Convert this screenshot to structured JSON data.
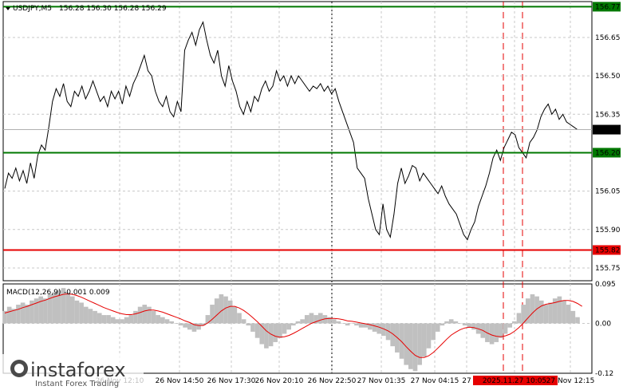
{
  "window": {
    "title": "USDJPY,M5",
    "ohlc": "156.28 156.30 156.28 156.29",
    "menu_icon": "triangle-down-icon"
  },
  "indicator": {
    "label": "MACD(12,26,9)",
    "values": "-0.001 0.009"
  },
  "brand": {
    "name": "instaforex",
    "tagline": "Instant Forex Trading"
  },
  "colors": {
    "price_line": "#000000",
    "green_level": "#007800",
    "red_level": "#e60000",
    "grid": "#c8c8c8",
    "macd_hist": "#c0c0c0",
    "macd_signal": "#e60000",
    "current_price_box": "#000000"
  },
  "chart_data": [
    {
      "type": "line",
      "symbol": "USDJPY",
      "timeframe": "M5",
      "ylim": [
        155.7,
        156.79
      ],
      "y_ticks": [
        "156.77",
        "156.65",
        "156.50",
        "156.35",
        "156.20",
        "156.05",
        "155.90",
        "155.82",
        "155.75"
      ],
      "x_ticks": [
        "26 Nov 12:10",
        "26 Nov 14:50",
        "26 Nov 17:30",
        "26 Nov 20:10",
        "26 Nov 22:50",
        "27 Nov 01:35",
        "27 Nov 04:15",
        "27",
        "2025.11.27 10:05",
        "27 Nov 12:15"
      ],
      "levels": [
        {
          "label": "156.77",
          "value": 156.77,
          "color": "green"
        },
        {
          "label": "156.20",
          "value": 156.2,
          "color": "green"
        },
        {
          "label": "155.82",
          "value": 155.82,
          "color": "red"
        }
      ],
      "current_price": {
        "label": "156.29",
        "value": 156.29
      },
      "series": [
        {
          "values": [
            156.06,
            156.12,
            156.1,
            156.14,
            156.09,
            156.13,
            156.08,
            156.16,
            156.1,
            156.19,
            156.23,
            156.21,
            156.3,
            156.4,
            156.45,
            156.42,
            156.47,
            156.4,
            156.38,
            156.44,
            156.42,
            156.46,
            156.41,
            156.44,
            156.48,
            156.44,
            156.4,
            156.42,
            156.38,
            156.44,
            156.41,
            156.44,
            156.39,
            156.46,
            156.42,
            156.47,
            156.5,
            156.54,
            156.58,
            156.52,
            156.5,
            156.44,
            156.4,
            156.38,
            156.42,
            156.36,
            156.34,
            156.4,
            156.36,
            156.6,
            156.64,
            156.67,
            156.62,
            156.68,
            156.71,
            156.64,
            156.58,
            156.55,
            156.6,
            156.5,
            156.46,
            156.54,
            156.48,
            156.44,
            156.38,
            156.35,
            156.4,
            156.36,
            156.42,
            156.4,
            156.45,
            156.48,
            156.44,
            156.46,
            156.52,
            156.48,
            156.5,
            156.46,
            156.5,
            156.47,
            156.5,
            156.48,
            156.46,
            156.44,
            156.46,
            156.45,
            156.47,
            156.44,
            156.46,
            156.43,
            156.45,
            156.4,
            156.36,
            156.32,
            156.28,
            156.24,
            156.14,
            156.12,
            156.1,
            156.02,
            155.96,
            155.9,
            155.88,
            156.0,
            155.9,
            155.87,
            155.96,
            156.08,
            156.14,
            156.08,
            156.11,
            156.15,
            156.14,
            156.09,
            156.12,
            156.1,
            156.08,
            156.06,
            156.04,
            156.07,
            156.03,
            156.0,
            155.98,
            155.96,
            155.92,
            155.88,
            155.86,
            155.9,
            155.93,
            155.99,
            156.03,
            156.07,
            156.12,
            156.18,
            156.21,
            156.17,
            156.22,
            156.25,
            156.28,
            156.27,
            156.22,
            156.2,
            156.18,
            156.24,
            156.26,
            156.29,
            156.34,
            156.37,
            156.39,
            156.35,
            156.37,
            156.33,
            156.35,
            156.32,
            156.31,
            156.3,
            156.29
          ]
        }
      ]
    },
    {
      "type": "bar",
      "title": "MACD(12,26,9)",
      "ylim": [
        -0.12,
        0.095
      ],
      "y_ticks": [
        "0.095",
        "0.00",
        "-0.12"
      ],
      "series": [
        {
          "name": "histogram",
          "values": [
            0.03,
            0.04,
            0.035,
            0.045,
            0.05,
            0.045,
            0.055,
            0.06,
            0.065,
            0.06,
            0.07,
            0.075,
            0.08,
            0.085,
            0.075,
            0.065,
            0.055,
            0.05,
            0.04,
            0.035,
            0.03,
            0.025,
            0.02,
            0.02,
            0.015,
            0.01,
            0.01,
            0.015,
            0.02,
            0.03,
            0.04,
            0.045,
            0.04,
            0.03,
            0.02,
            0.015,
            0.01,
            0.005,
            0.0,
            -0.005,
            -0.01,
            -0.015,
            -0.02,
            -0.015,
            -0.005,
            0.02,
            0.045,
            0.06,
            0.07,
            0.065,
            0.055,
            0.04,
            0.025,
            0.01,
            -0.005,
            -0.02,
            -0.035,
            -0.05,
            -0.06,
            -0.055,
            -0.045,
            -0.035,
            -0.025,
            -0.015,
            -0.005,
            0.005,
            0.01,
            0.02,
            0.025,
            0.02,
            0.025,
            0.02,
            0.015,
            0.01,
            0.005,
            0.0,
            -0.005,
            0.0,
            -0.005,
            -0.01,
            -0.01,
            -0.015,
            -0.02,
            -0.025,
            -0.03,
            -0.04,
            -0.055,
            -0.07,
            -0.085,
            -0.1,
            -0.11,
            -0.115,
            -0.1,
            -0.08,
            -0.06,
            -0.04,
            -0.02,
            -0.005,
            0.005,
            0.01,
            0.005,
            0.0,
            -0.005,
            -0.01,
            -0.015,
            -0.025,
            -0.035,
            -0.045,
            -0.05,
            -0.045,
            -0.035,
            -0.025,
            -0.01,
            0.005,
            0.025,
            0.045,
            0.06,
            0.07,
            0.065,
            0.055,
            0.045,
            0.05,
            0.06,
            0.065,
            0.055,
            0.045,
            0.03,
            0.015
          ]
        },
        {
          "name": "signal",
          "values": [
            0.025,
            0.028,
            0.031,
            0.034,
            0.038,
            0.041,
            0.045,
            0.049,
            0.053,
            0.056,
            0.06,
            0.064,
            0.067,
            0.07,
            0.071,
            0.07,
            0.067,
            0.063,
            0.058,
            0.053,
            0.048,
            0.043,
            0.038,
            0.034,
            0.03,
            0.026,
            0.023,
            0.021,
            0.021,
            0.023,
            0.026,
            0.03,
            0.032,
            0.032,
            0.03,
            0.027,
            0.023,
            0.019,
            0.015,
            0.011,
            0.006,
            0.002,
            -0.003,
            -0.005,
            -0.005,
            0.001,
            0.01,
            0.02,
            0.03,
            0.037,
            0.041,
            0.041,
            0.037,
            0.031,
            0.023,
            0.014,
            0.004,
            -0.007,
            -0.018,
            -0.026,
            -0.031,
            -0.033,
            -0.032,
            -0.029,
            -0.024,
            -0.018,
            -0.012,
            -0.006,
            0.0,
            0.004,
            0.008,
            0.011,
            0.012,
            0.012,
            0.011,
            0.009,
            0.006,
            0.005,
            0.003,
            0.001,
            -0.001,
            -0.003,
            -0.006,
            -0.009,
            -0.013,
            -0.018,
            -0.025,
            -0.034,
            -0.044,
            -0.056,
            -0.067,
            -0.077,
            -0.082,
            -0.082,
            -0.078,
            -0.07,
            -0.06,
            -0.049,
            -0.038,
            -0.028,
            -0.021,
            -0.015,
            -0.011,
            -0.009,
            -0.01,
            -0.013,
            -0.017,
            -0.023,
            -0.028,
            -0.031,
            -0.032,
            -0.03,
            -0.026,
            -0.019,
            -0.01,
            0.001,
            0.013,
            0.025,
            0.035,
            0.042,
            0.046,
            0.048,
            0.05,
            0.053,
            0.055,
            0.055,
            0.053,
            0.048,
            0.041
          ]
        }
      ]
    }
  ]
}
